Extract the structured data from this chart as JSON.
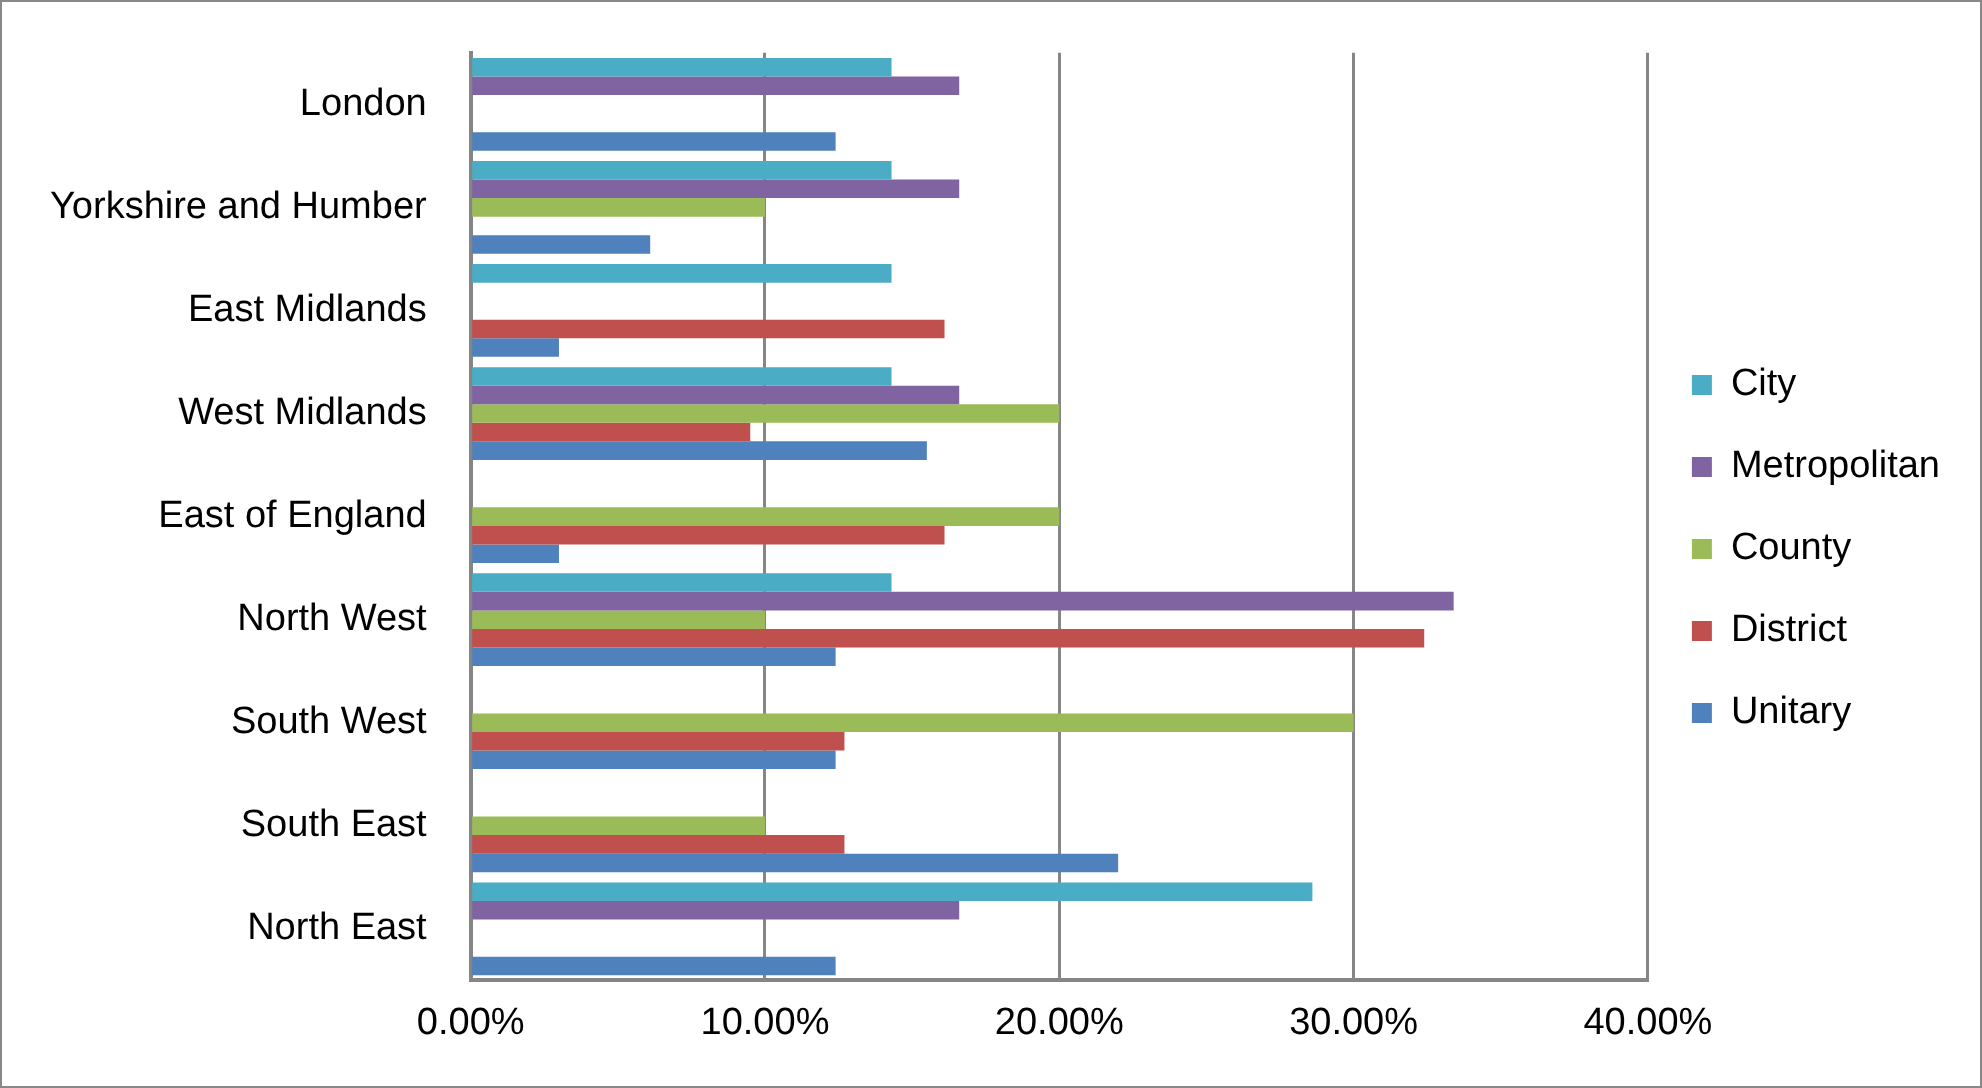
{
  "chart_data": {
    "type": "bar",
    "orientation": "horizontal",
    "categories": [
      "London",
      "Yorkshire and Humber",
      "East Midlands",
      "West Midlands",
      "East of England",
      "North West",
      "South West",
      "South East",
      "North East"
    ],
    "series": [
      {
        "name": "City",
        "color": "#4bacc6",
        "values": [
          14.3,
          14.3,
          14.3,
          14.3,
          null,
          14.3,
          null,
          null,
          28.6
        ]
      },
      {
        "name": "Metropolitan",
        "color": "#8064a2",
        "values": [
          16.6,
          16.6,
          null,
          16.6,
          null,
          33.4,
          null,
          null,
          16.6
        ]
      },
      {
        "name": "County",
        "color": "#9bbb59",
        "values": [
          null,
          10,
          null,
          20,
          20,
          10,
          30,
          10,
          null
        ]
      },
      {
        "name": "District",
        "color": "#c0504d",
        "values": [
          null,
          null,
          16.1,
          9.5,
          16.1,
          32.4,
          12.7,
          12.7,
          null
        ]
      },
      {
        "name": "Unitary",
        "color": "#4f81bd",
        "values": [
          12.4,
          6.1,
          3,
          15.5,
          3,
          12.4,
          12.4,
          22,
          12.4
        ]
      }
    ],
    "xlim": [
      0,
      40
    ],
    "xticks": [
      {
        "value": 0,
        "label": "0.00%"
      },
      {
        "value": 10,
        "label": "10.00%"
      },
      {
        "value": 20,
        "label": "20.00%"
      },
      {
        "value": 30,
        "label": "30.00%"
      },
      {
        "value": 40,
        "label": "40.00%"
      }
    ],
    "grid": "x",
    "legend": "right"
  }
}
